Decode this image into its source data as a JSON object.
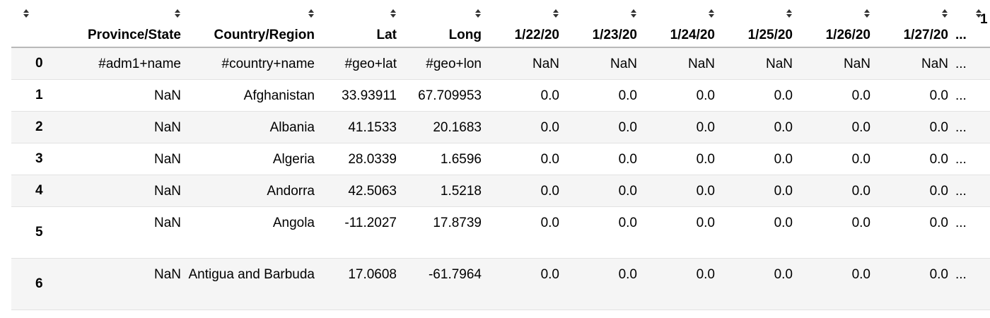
{
  "table": {
    "columns": [
      {
        "key": "index",
        "label": ""
      },
      {
        "key": "province_state",
        "label": "Province/State"
      },
      {
        "key": "country_region",
        "label": "Country/Region"
      },
      {
        "key": "lat",
        "label": "Lat"
      },
      {
        "key": "long",
        "label": "Long"
      },
      {
        "key": "d_1_22_20",
        "label": "1/22/20"
      },
      {
        "key": "d_1_23_20",
        "label": "1/23/20"
      },
      {
        "key": "d_1_24_20",
        "label": "1/24/20"
      },
      {
        "key": "d_1_25_20",
        "label": "1/25/20"
      },
      {
        "key": "d_1_26_20",
        "label": "1/26/20"
      },
      {
        "key": "d_1_27_20",
        "label": "1/27/20"
      },
      {
        "key": "ellipsis",
        "label": "..."
      },
      {
        "key": "cut",
        "label": "1"
      }
    ],
    "rows": [
      {
        "index": "0",
        "cells": [
          "#adm1+name",
          "#country+name",
          "#geo+lat",
          "#geo+lon",
          "NaN",
          "NaN",
          "NaN",
          "NaN",
          "NaN",
          "NaN",
          "..."
        ]
      },
      {
        "index": "1",
        "cells": [
          "NaN",
          "Afghanistan",
          "33.93911",
          "67.709953",
          "0.0",
          "0.0",
          "0.0",
          "0.0",
          "0.0",
          "0.0",
          "..."
        ]
      },
      {
        "index": "2",
        "cells": [
          "NaN",
          "Albania",
          "41.1533",
          "20.1683",
          "0.0",
          "0.0",
          "0.0",
          "0.0",
          "0.0",
          "0.0",
          "..."
        ]
      },
      {
        "index": "3",
        "cells": [
          "NaN",
          "Algeria",
          "28.0339",
          "1.6596",
          "0.0",
          "0.0",
          "0.0",
          "0.0",
          "0.0",
          "0.0",
          "..."
        ]
      },
      {
        "index": "4",
        "cells": [
          "NaN",
          "Andorra",
          "42.5063",
          "1.5218",
          "0.0",
          "0.0",
          "0.0",
          "0.0",
          "0.0",
          "0.0",
          "..."
        ]
      },
      {
        "index": "5",
        "cells": [
          "NaN",
          "Angola",
          "-11.2027",
          "17.8739",
          "0.0",
          "0.0",
          "0.0",
          "0.0",
          "0.0",
          "0.0",
          "..."
        ]
      },
      {
        "index": "6",
        "cells": [
          "NaN",
          "Antigua and Barbuda",
          "17.0608",
          "-61.7964",
          "0.0",
          "0.0",
          "0.0",
          "0.0",
          "0.0",
          "0.0",
          "..."
        ]
      }
    ]
  },
  "icons": {
    "sort": "sort-arrows-icon"
  },
  "colors": {
    "header_border": "#b9b9b9",
    "row_border": "#e2e2e2",
    "zebra": "#f5f5f5"
  }
}
